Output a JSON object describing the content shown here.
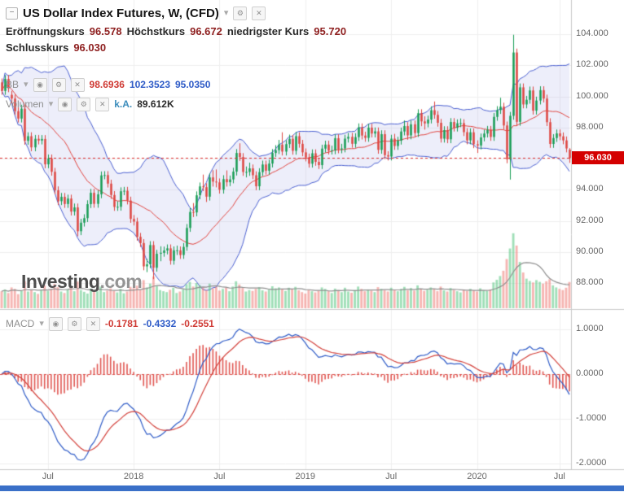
{
  "header": {
    "title": "US Dollar Index Futures, W, (CFD)"
  },
  "icons": {
    "collapse": "−",
    "caret": "▾",
    "gear": "⚙",
    "close": "✕",
    "eye": "◉"
  },
  "quote_legend": {
    "open_label": "Eröffnungskurs",
    "open": "96.578",
    "high_label": "Höchstkurs",
    "high": "96.672",
    "low_label": "niedrigster Kurs",
    "low": "95.720",
    "close_label": "Schlusskurs",
    "close": "96.030"
  },
  "indicators": {
    "bb": {
      "label": "BB",
      "middle": "98.6936",
      "upper": "102.3523",
      "lower": "95.0350"
    },
    "volume": {
      "label": "Volumen",
      "ma_value": "k.A.",
      "value": "89.612K"
    },
    "macd": {
      "label": "MACD",
      "histogram": "-0.1781",
      "macd": "-0.4332",
      "signal": "-0.2551"
    }
  },
  "watermark": {
    "part1": "Investing",
    "part2": ".com"
  },
  "price_axis": {
    "ticks": [
      "104.000",
      "102.000",
      "100.000",
      "98.000",
      "96.000",
      "94.000",
      "92.000",
      "90.000",
      "88.000"
    ],
    "tick_values": [
      104,
      102,
      100,
      98,
      96,
      94,
      92,
      90,
      88
    ],
    "last_price_label": "96.030",
    "last_price_value": 96.03
  },
  "macd_axis": {
    "ticks": [
      "1.0000",
      "0.0000",
      "-1.0000",
      "-2.0000"
    ],
    "tick_values": [
      1,
      0,
      -1,
      -2
    ]
  },
  "time_axis": {
    "ticks": [
      {
        "label": "Jul",
        "index": 14
      },
      {
        "label": "2018",
        "index": 40
      },
      {
        "label": "Jul",
        "index": 66
      },
      {
        "label": "2019",
        "index": 92
      },
      {
        "label": "Jul",
        "index": 118
      },
      {
        "label": "2020",
        "index": 144
      },
      {
        "label": "Jul",
        "index": 169
      }
    ]
  },
  "colors": {
    "up": "#169c53",
    "down": "#dd4540",
    "vol_up": "rgba(82,196,126,0.55)",
    "vol_down": "rgba(238,120,114,0.55)",
    "vol_ma": "#8f8f8f",
    "bb_fill": "rgba(115,120,215,0.13)",
    "bb_edge": "#4a5fd0",
    "bb_mid": "#e0433e",
    "macd_line": "#2e5bc7",
    "macd_signal": "#d3423c",
    "macd_hist": "#e05752",
    "macd_zero": "#e05752",
    "last_price": "#e03131",
    "last_price_badge": "#d40000",
    "grid": "#efefef",
    "frame": "#c9c9c9",
    "scrollbar": "#3a70c8"
  },
  "chart_data": {
    "type": "candlestick",
    "symbol": "US Dollar Index Futures",
    "interval": "W",
    "price_range_visible": [
      86.3,
      106.2
    ],
    "overlays": [
      {
        "type": "bollinger",
        "period": 20,
        "stddev": 2
      },
      {
        "type": "volume_ma",
        "period": 10
      }
    ],
    "indicators": [
      {
        "type": "macd",
        "fast": 12,
        "slow": 26,
        "signal": 9,
        "range_visible": [
          -2.15,
          1.42
        ]
      }
    ],
    "last": {
      "open": 96.578,
      "high": 96.672,
      "low": 95.72,
      "close": 96.03,
      "volume_k": 89.612
    },
    "candles": [
      [
        100.9,
        101.15,
        100.1,
        100.35
      ],
      [
        100.35,
        101.37,
        100.1,
        101.12
      ],
      [
        101.12,
        101.37,
        100.27,
        100.52
      ],
      [
        100.1,
        100.35,
        99.55,
        99.86
      ],
      [
        99.86,
        100.11,
        98.8,
        99.05
      ],
      [
        99.05,
        99.3,
        98.32,
        98.57
      ],
      [
        98.57,
        99.46,
        98.32,
        99.21
      ],
      [
        99.21,
        99.46,
        96.89,
        97.14
      ],
      [
        97.14,
        97.69,
        96.89,
        97.44
      ],
      [
        97.44,
        97.69,
        96.47,
        96.72
      ],
      [
        96.72,
        97.52,
        96.47,
        97.27
      ],
      [
        97.27,
        97.52,
        96.91,
        97.16
      ],
      [
        97.16,
        97.51,
        96.91,
        97.26
      ],
      [
        97.26,
        97.51,
        95.38,
        95.63
      ],
      [
        95.63,
        96.26,
        95.38,
        96.01
      ],
      [
        96.01,
        96.26,
        94.9,
        95.15
      ],
      [
        95.15,
        95.4,
        93.71,
        93.96
      ],
      [
        93.96,
        94.21,
        93.01,
        93.26
      ],
      [
        93.26,
        93.79,
        93.01,
        93.54
      ],
      [
        93.54,
        93.79,
        92.83,
        93.08
      ],
      [
        93.08,
        93.68,
        92.83,
        93.43
      ],
      [
        93.43,
        93.68,
        92.34,
        92.59
      ],
      [
        92.59,
        93.11,
        92.34,
        92.86
      ],
      [
        92.86,
        93.11,
        91.01,
        91.33
      ],
      [
        91.33,
        92.13,
        91.08,
        91.88
      ],
      [
        91.88,
        92.42,
        91.63,
        92.17
      ],
      [
        92.17,
        93.32,
        91.92,
        93.07
      ],
      [
        93.07,
        94.05,
        92.82,
        93.8
      ],
      [
        93.8,
        94.05,
        92.84,
        93.09
      ],
      [
        93.09,
        93.95,
        92.84,
        93.7
      ],
      [
        93.7,
        95.17,
        93.45,
        94.92
      ],
      [
        94.92,
        95.19,
        94.67,
        94.94
      ],
      [
        94.94,
        95.19,
        94.14,
        94.39
      ],
      [
        94.39,
        94.64,
        93.41,
        93.66
      ],
      [
        93.66,
        93.91,
        92.64,
        92.89
      ],
      [
        92.89,
        93.25,
        92.64,
        92.9
      ],
      [
        92.9,
        94.15,
        92.65,
        93.9
      ],
      [
        93.9,
        94.18,
        93.65,
        93.93
      ],
      [
        93.93,
        94.18,
        93.05,
        93.3
      ],
      [
        93.3,
        93.55,
        91.87,
        92.12
      ],
      [
        92.12,
        92.37,
        91.7,
        91.95
      ],
      [
        91.95,
        92.2,
        90.72,
        90.97
      ],
      [
        90.97,
        91.22,
        90.32,
        90.57
      ],
      [
        90.57,
        90.82,
        88.82,
        89.07
      ],
      [
        89.07,
        89.55,
        88.7,
        89.2
      ],
      [
        89.2,
        90.69,
        88.95,
        90.44
      ],
      [
        90.44,
        90.69,
        88.25,
        88.98
      ],
      [
        88.98,
        90.13,
        88.73,
        89.88
      ],
      [
        89.88,
        90.36,
        89.4,
        89.94
      ],
      [
        89.94,
        90.34,
        89.69,
        90.09
      ],
      [
        90.09,
        90.48,
        89.84,
        90.23
      ],
      [
        90.23,
        90.48,
        89.18,
        89.43
      ],
      [
        89.43,
        90.35,
        89.18,
        90.1
      ],
      [
        90.1,
        90.4,
        89.8,
        90.1
      ],
      [
        90.1,
        90.35,
        89.55,
        89.8
      ],
      [
        89.8,
        90.57,
        89.55,
        90.32
      ],
      [
        90.32,
        91.79,
        90.07,
        91.54
      ],
      [
        91.54,
        92.82,
        91.29,
        92.57
      ],
      [
        92.57,
        93.14,
        92.24,
        92.54
      ],
      [
        92.54,
        93.89,
        92.29,
        93.64
      ],
      [
        93.64,
        94.46,
        93.39,
        94.21
      ],
      [
        94.21,
        94.97,
        93.91,
        94.16
      ],
      [
        94.16,
        94.41,
        93.21,
        93.55
      ],
      [
        93.55,
        95.04,
        93.3,
        94.79
      ],
      [
        94.79,
        95.25,
        94.2,
        94.52
      ],
      [
        94.52,
        95.3,
        94.15,
        94.47
      ],
      [
        94.47,
        94.72,
        93.75,
        94.0
      ],
      [
        94.0,
        94.93,
        93.75,
        94.68
      ],
      [
        94.68,
        95.24,
        94.2,
        94.48
      ],
      [
        94.48,
        94.91,
        94.23,
        94.66
      ],
      [
        94.66,
        95.41,
        94.41,
        95.16
      ],
      [
        95.16,
        96.61,
        94.91,
        96.36
      ],
      [
        96.36,
        96.98,
        95.85,
        96.1
      ],
      [
        96.1,
        96.35,
        94.89,
        95.14
      ],
      [
        95.14,
        95.49,
        94.79,
        95.14
      ],
      [
        95.14,
        95.74,
        94.89,
        95.37
      ],
      [
        95.37,
        95.62,
        94.68,
        94.93
      ],
      [
        94.93,
        95.18,
        93.97,
        94.22
      ],
      [
        94.22,
        95.38,
        93.97,
        95.13
      ],
      [
        95.13,
        95.87,
        94.88,
        95.62
      ],
      [
        95.62,
        95.87,
        94.97,
        95.22
      ],
      [
        95.22,
        95.93,
        94.97,
        95.68
      ],
      [
        95.68,
        96.61,
        95.43,
        96.36
      ],
      [
        96.36,
        96.86,
        96.11,
        96.54
      ],
      [
        96.54,
        97.2,
        96.29,
        96.9
      ],
      [
        96.9,
        97.69,
        96.2,
        96.45
      ],
      [
        96.45,
        97.18,
        96.2,
        96.93
      ],
      [
        96.93,
        97.54,
        96.68,
        97.27
      ],
      [
        97.27,
        97.52,
        96.25,
        96.5
      ],
      [
        96.5,
        97.71,
        96.25,
        97.44
      ],
      [
        97.44,
        97.69,
        96.7,
        96.95
      ],
      [
        96.95,
        97.2,
        96.15,
        96.4
      ],
      [
        96.4,
        96.65,
        95.82,
        96.07
      ],
      [
        96.07,
        96.32,
        95.42,
        95.67
      ],
      [
        95.67,
        96.59,
        95.42,
        96.34
      ],
      [
        96.34,
        96.59,
        95.54,
        95.79
      ],
      [
        95.79,
        96.04,
        95.33,
        95.58
      ],
      [
        95.58,
        96.89,
        95.33,
        96.64
      ],
      [
        96.64,
        97.15,
        96.39,
        96.9
      ],
      [
        96.9,
        97.15,
        96.26,
        96.51
      ],
      [
        96.51,
        96.83,
        96.26,
        96.53
      ],
      [
        96.53,
        97.56,
        96.28,
        97.31
      ],
      [
        97.31,
        97.56,
        96.34,
        96.59
      ],
      [
        96.59,
        96.95,
        96.34,
        96.65
      ],
      [
        96.65,
        97.53,
        96.4,
        97.28
      ],
      [
        97.28,
        97.65,
        97.03,
        97.4
      ],
      [
        97.4,
        97.65,
        96.7,
        96.95
      ],
      [
        96.95,
        97.63,
        96.7,
        97.38
      ],
      [
        97.38,
        98.26,
        97.13,
        98.01
      ],
      [
        98.01,
        98.26,
        97.23,
        97.48
      ],
      [
        97.48,
        97.73,
        97.08,
        97.33
      ],
      [
        97.33,
        98.24,
        97.08,
        97.99
      ],
      [
        97.99,
        98.24,
        97.36,
        97.61
      ],
      [
        97.61,
        98.0,
        97.36,
        97.75
      ],
      [
        97.75,
        98.0,
        96.31,
        96.56
      ],
      [
        96.56,
        97.82,
        96.31,
        97.57
      ],
      [
        97.57,
        97.82,
        95.97,
        96.22
      ],
      [
        96.22,
        96.47,
        95.88,
        96.13
      ],
      [
        96.13,
        97.53,
        95.88,
        97.28
      ],
      [
        97.28,
        97.59,
        96.56,
        96.81
      ],
      [
        96.81,
        97.4,
        96.56,
        97.15
      ],
      [
        97.15,
        97.99,
        96.9,
        97.74
      ],
      [
        97.74,
        98.45,
        97.49,
        98.09
      ],
      [
        98.09,
        98.34,
        97.21,
        97.49
      ],
      [
        97.49,
        98.45,
        97.24,
        98.2
      ],
      [
        98.2,
        98.45,
        97.39,
        97.64
      ],
      [
        97.64,
        99.17,
        97.39,
        98.92
      ],
      [
        98.92,
        99.17,
        98.08,
        98.39
      ],
      [
        98.39,
        98.72,
        97.86,
        98.26
      ],
      [
        98.26,
        98.76,
        98.01,
        98.51
      ],
      [
        98.51,
        99.36,
        98.26,
        99.11
      ],
      [
        99.11,
        99.67,
        98.56,
        98.81
      ],
      [
        98.81,
        99.06,
        98.05,
        98.3
      ],
      [
        98.3,
        98.55,
        97.03,
        97.28
      ],
      [
        97.28,
        98.08,
        97.03,
        97.83
      ],
      [
        97.83,
        98.08,
        96.99,
        97.24
      ],
      [
        97.24,
        98.6,
        96.99,
        98.35
      ],
      [
        98.35,
        98.6,
        97.74,
        97.99
      ],
      [
        97.99,
        98.52,
        97.74,
        98.27
      ],
      [
        98.27,
        98.58,
        98.02,
        98.28
      ],
      [
        98.28,
        98.53,
        97.45,
        97.7
      ],
      [
        97.7,
        97.95,
        96.92,
        97.17
      ],
      [
        97.17,
        97.94,
        96.92,
        97.69
      ],
      [
        97.69,
        97.94,
        96.67,
        96.92
      ],
      [
        96.92,
        97.17,
        96.36,
        96.84
      ],
      [
        96.84,
        97.61,
        96.59,
        97.36
      ],
      [
        97.36,
        97.86,
        97.11,
        97.61
      ],
      [
        97.61,
        98.1,
        97.36,
        97.85
      ],
      [
        97.85,
        98.1,
        97.14,
        97.39
      ],
      [
        97.39,
        98.93,
        97.14,
        98.68
      ],
      [
        98.68,
        99.37,
        98.43,
        99.12
      ],
      [
        99.12,
        99.91,
        98.87,
        99.34
      ],
      [
        99.34,
        99.59,
        97.88,
        98.13
      ],
      [
        98.13,
        98.38,
        95.7,
        95.95
      ],
      [
        95.95,
        99.0,
        94.65,
        98.75
      ],
      [
        98.75,
        103.96,
        98.5,
        102.82
      ],
      [
        102.82,
        103.07,
        98.11,
        98.36
      ],
      [
        98.36,
        100.83,
        98.11,
        100.58
      ],
      [
        100.58,
        100.83,
        99.23,
        99.48
      ],
      [
        99.48,
        100.03,
        99.23,
        99.78
      ],
      [
        99.78,
        100.63,
        99.53,
        100.38
      ],
      [
        100.38,
        100.63,
        98.83,
        99.08
      ],
      [
        99.08,
        99.98,
        98.83,
        99.73
      ],
      [
        99.73,
        100.65,
        99.48,
        100.4
      ],
      [
        100.4,
        100.65,
        99.61,
        99.86
      ],
      [
        99.86,
        100.11,
        98.09,
        98.34
      ],
      [
        98.34,
        98.59,
        96.69,
        96.94
      ],
      [
        96.94,
        97.57,
        96.69,
        97.32
      ],
      [
        97.32,
        97.87,
        97.07,
        97.62
      ],
      [
        97.62,
        97.87,
        97.18,
        97.43
      ],
      [
        97.43,
        97.68,
        96.92,
        97.17
      ],
      [
        97.17,
        97.42,
        96.4,
        96.65
      ],
      [
        96.578,
        96.672,
        95.72,
        96.03
      ]
    ],
    "volumes_k": [
      58,
      64,
      52,
      71,
      66,
      48,
      60,
      92,
      57,
      63,
      55,
      49,
      61,
      78,
      59,
      66,
      83,
      72,
      57,
      52,
      64,
      71,
      58,
      91,
      62,
      56,
      50,
      67,
      61,
      58,
      74,
      55,
      60,
      68,
      59,
      54,
      66,
      51,
      57,
      73,
      69,
      77,
      63,
      96,
      71,
      84,
      108,
      76,
      62,
      58,
      55,
      63,
      70,
      52,
      57,
      64,
      82,
      90,
      74,
      86,
      79,
      71,
      62,
      84,
      68,
      73,
      60,
      66,
      71,
      58,
      74,
      92,
      81,
      69,
      57,
      62,
      59,
      66,
      72,
      61,
      57,
      63,
      75,
      68,
      71,
      66,
      59,
      70,
      64,
      73,
      61,
      55,
      50,
      63,
      58,
      54,
      60,
      71,
      66,
      58,
      52,
      67,
      61,
      55,
      70,
      57,
      53,
      62,
      74,
      66,
      58,
      64,
      60,
      55,
      72,
      66,
      61,
      57,
      70,
      62,
      58,
      66,
      73,
      61,
      69,
      60,
      78,
      65,
      59,
      63,
      71,
      66,
      58,
      74,
      61,
      57,
      69,
      62,
      58,
      54,
      63,
      59,
      66,
      61,
      57,
      68,
      62,
      59,
      64,
      88,
      97,
      110,
      128,
      168,
      204,
      256,
      214,
      158,
      122,
      101,
      93,
      88,
      96,
      90,
      84,
      92,
      99,
      78,
      71,
      66,
      62,
      70,
      89.612
    ]
  }
}
